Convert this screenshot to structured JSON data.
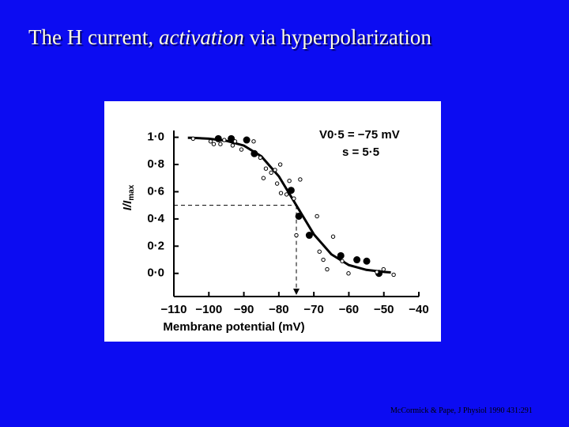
{
  "slide": {
    "title": [
      "The H current, ",
      "activation",
      " via hyperpolarization"
    ],
    "citation": "McCormick & Pape, J Physiol 1990 431:291"
  },
  "chart_data": {
    "type": "scatter",
    "xlabel": "Membrane potential (mV)",
    "ylabel": [
      "I/I",
      "max"
    ],
    "annotations": [
      "V0·5 = −75 mV",
      "s = 5·5"
    ],
    "xlim": [
      -110,
      -40
    ],
    "ylim": [
      -0.17,
      1.05
    ],
    "xticks": [
      {
        "value": -110,
        "label": "−110"
      },
      {
        "value": -100,
        "label": "−100"
      },
      {
        "value": -90,
        "label": "−90"
      },
      {
        "value": -80,
        "label": "−80"
      },
      {
        "value": -70,
        "label": "−70"
      },
      {
        "value": -60,
        "label": "−60"
      },
      {
        "value": -50,
        "label": "−50"
      },
      {
        "value": -40,
        "label": "−40"
      }
    ],
    "yticks": [
      {
        "value": 0,
        "label": "0·0"
      },
      {
        "value": 0.2,
        "label": "0·2"
      },
      {
        "value": 0.4,
        "label": "0·4"
      },
      {
        "value": 0.6,
        "label": "0·6"
      },
      {
        "value": 0.8,
        "label": "0·8"
      },
      {
        "value": 1,
        "label": "1·0"
      }
    ],
    "guide": {
      "x": -75,
      "y": 0.5
    },
    "series": [
      {
        "type": "line",
        "color": "#000000",
        "x": [
          -106,
          -105,
          -100,
          -95,
          -90,
          -85,
          -80,
          -75,
          -70,
          -65,
          -60,
          -55,
          -50,
          -48
        ],
        "values": [
          0.996,
          0.996,
          0.99,
          0.974,
          0.939,
          0.86,
          0.713,
          0.5,
          0.287,
          0.14,
          0.061,
          0.026,
          0.011,
          0.007
        ]
      },
      {
        "type": "scatter",
        "marker": "filled",
        "color": "#000000",
        "x": [
          -97.3,
          -93.6,
          -89.2,
          -87.0,
          -76.5,
          -74.3,
          -71.3,
          -62.3,
          -57.7,
          -54.9,
          -51.4
        ],
        "values": [
          0.99,
          0.99,
          0.98,
          0.88,
          0.61,
          0.42,
          0.28,
          0.13,
          0.1,
          0.09,
          0.0
        ]
      },
      {
        "type": "scatter",
        "marker": "open",
        "color": "#000000",
        "x": [
          -104.5,
          -99.5,
          -98.6,
          -96.7,
          -95.6,
          -93.2,
          -92.5,
          -90.7,
          -87.2,
          -85.3,
          -84.4,
          -83.7,
          -82.2,
          -81.1,
          -79.6,
          -80.5,
          -79.4,
          -77.8,
          -77.0,
          -75.7,
          -73.9,
          -69.1,
          -75.0,
          -68.4,
          -67.3,
          -66.2,
          -64.5,
          -61.9,
          -60.1,
          -52.0,
          -50.1,
          -47.2
        ],
        "values": [
          0.99,
          0.97,
          0.95,
          0.95,
          0.98,
          0.94,
          0.97,
          0.91,
          0.97,
          0.85,
          0.7,
          0.77,
          0.74,
          0.76,
          0.8,
          0.66,
          0.59,
          0.58,
          0.68,
          0.55,
          0.69,
          0.42,
          0.28,
          0.16,
          0.1,
          0.03,
          0.27,
          0.09,
          0.0,
          0.01,
          0.03,
          -0.01
        ]
      }
    ]
  }
}
